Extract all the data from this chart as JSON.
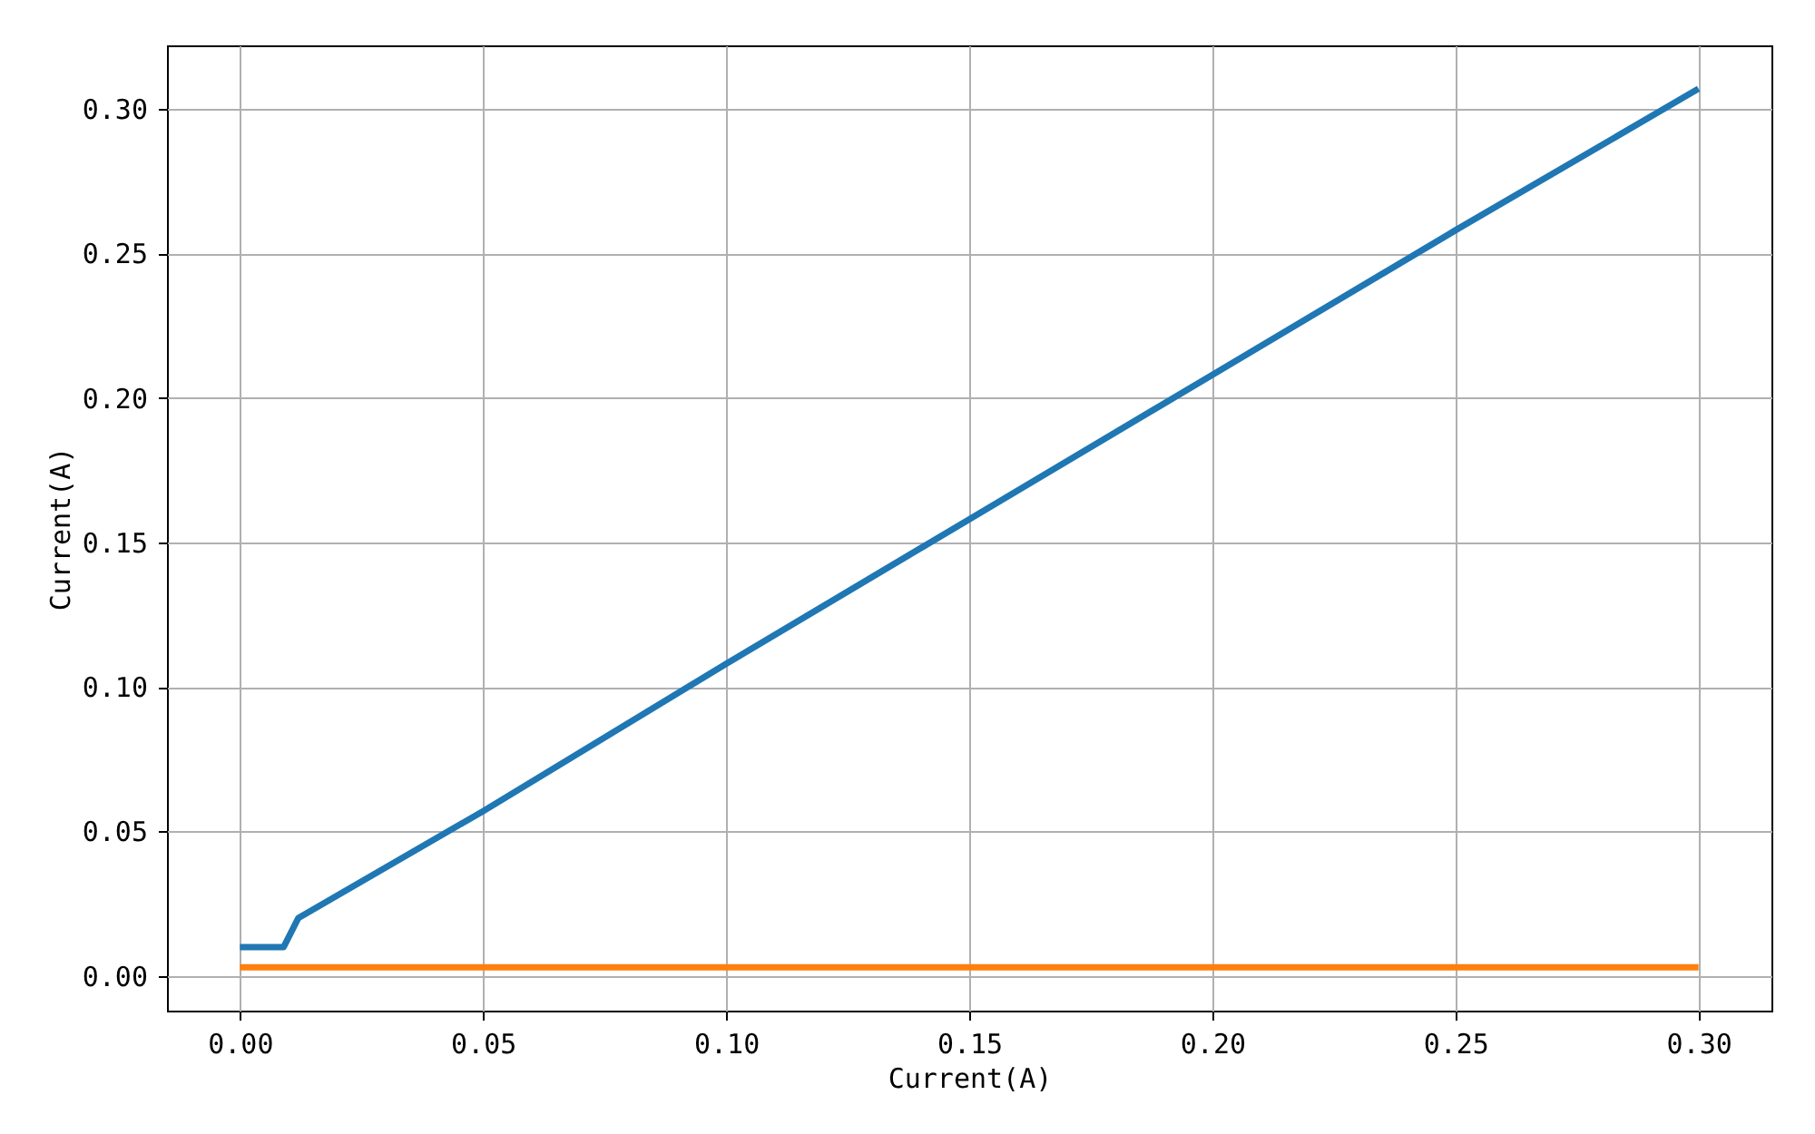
{
  "chart_data": {
    "type": "line",
    "xlabel": "Current(A)",
    "ylabel": "Current(A)",
    "x": [
      0,
      0.009,
      0.012,
      0.05,
      0.1,
      0.15,
      0.2,
      0.25,
      0.3
    ],
    "series": [
      {
        "color": "#1f77b4",
        "values": [
          0.01,
          0.01,
          0.02,
          0.057,
          0.108,
          0.158,
          0.208,
          0.258,
          0.307
        ]
      },
      {
        "color": "#ff7f0e",
        "values": [
          0.003,
          0.003,
          0.003,
          0.003,
          0.003,
          0.003,
          0.003,
          0.003,
          0.003
        ]
      }
    ],
    "xlim": [
      -0.015,
      0.315
    ],
    "ylim": [
      -0.012,
      0.322
    ],
    "xticks": [
      {
        "value": 0,
        "label": "0.00"
      },
      {
        "value": 0.05,
        "label": "0.05"
      },
      {
        "value": 0.1,
        "label": "0.10"
      },
      {
        "value": 0.15,
        "label": "0.15"
      },
      {
        "value": 0.2,
        "label": "0.20"
      },
      {
        "value": 0.25,
        "label": "0.25"
      },
      {
        "value": 0.3,
        "label": "0.30"
      }
    ],
    "yticks": [
      {
        "value": 0,
        "label": "0.00"
      },
      {
        "value": 0.05,
        "label": "0.05"
      },
      {
        "value": 0.1,
        "label": "0.10"
      },
      {
        "value": 0.15,
        "label": "0.15"
      },
      {
        "value": 0.2,
        "label": "0.20"
      },
      {
        "value": 0.25,
        "label": "0.25"
      },
      {
        "value": 0.3,
        "label": "0.30"
      }
    ],
    "grid": true,
    "marker": "none",
    "line_style": "solid"
  }
}
